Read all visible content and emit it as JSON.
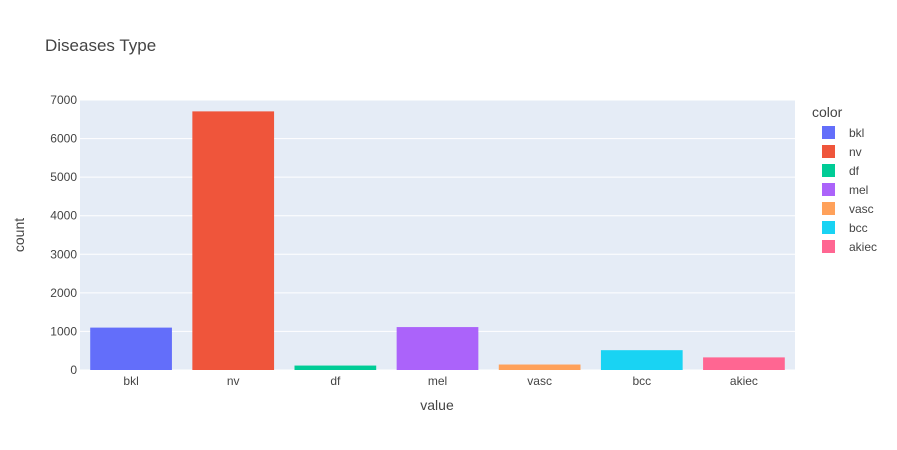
{
  "chart_data": {
    "type": "bar",
    "title": "Diseases Type",
    "xlabel": "value",
    "ylabel": "count",
    "categories": [
      "bkl",
      "nv",
      "df",
      "mel",
      "vasc",
      "bcc",
      "akiec"
    ],
    "values": [
      1099,
      6705,
      115,
      1113,
      142,
      514,
      327
    ],
    "colors": [
      "#636efa",
      "#EF553B",
      "#00cc96",
      "#ab63fa",
      "#FFA15A",
      "#19d3f3",
      "#FF6692"
    ],
    "ylim": [
      0,
      7000
    ],
    "yticks": [
      0,
      1000,
      2000,
      3000,
      4000,
      5000,
      6000,
      7000
    ],
    "ytick_labels": [
      "0",
      "1000",
      "2000",
      "3000",
      "4000",
      "5000",
      "6000",
      "7000"
    ],
    "grid": true,
    "legend": {
      "title": "color",
      "placement": "right",
      "entries": [
        "bkl",
        "nv",
        "df",
        "mel",
        "vasc",
        "bcc",
        "akiec"
      ]
    },
    "plot_background": "#e5ecf6"
  }
}
